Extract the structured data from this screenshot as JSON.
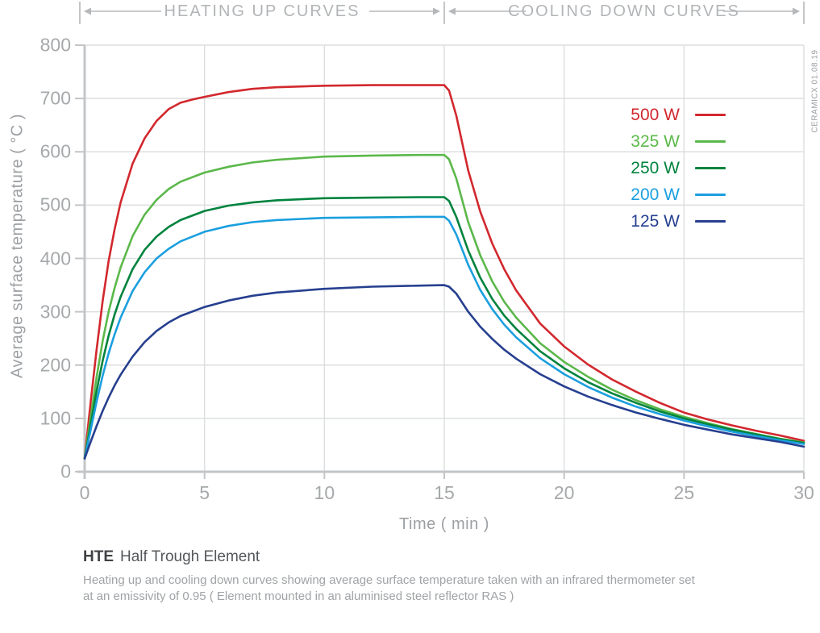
{
  "header": {
    "heating_label": "HEATING UP CURVES",
    "cooling_label": "COOLING DOWN CURVES"
  },
  "watermark": "CERAMICX 01.08.19",
  "caption": {
    "code": "HTE",
    "name": "Half Trough Element",
    "description_line1": "Heating up and cooling down curves showing average surface temperature taken with an infrared thermometer set",
    "description_line2": "at an emissivity of 0.95 ( Element mounted in an aluminised steel reflector RAS )"
  },
  "colors": {
    "grid": "#dcdedf",
    "axis": "#c3c5c7",
    "header_line": "#b6b8ba",
    "tick_label": "#a6a9ab",
    "axis_title": "#9da0a3"
  },
  "chart_data": {
    "type": "line",
    "title": "",
    "xlabel": "Time ( min )",
    "ylabel": "Average surface temperature ( °C )",
    "xlim": [
      0,
      30
    ],
    "ylim": [
      0,
      800
    ],
    "x_ticks": [
      0,
      5,
      10,
      15,
      20,
      25,
      30
    ],
    "y_ticks": [
      0,
      100,
      200,
      300,
      400,
      500,
      600,
      700,
      800
    ],
    "grid": true,
    "legend_position": "upper right inside",
    "section_divider_x": 15,
    "sections": [
      "HEATING UP CURVES",
      "COOLING DOWN CURVES"
    ],
    "series": [
      {
        "name": "500 W",
        "color": "#d2282e",
        "plateau_c": 725,
        "points": [
          [
            0,
            25
          ],
          [
            0.25,
            130
          ],
          [
            0.5,
            230
          ],
          [
            0.75,
            320
          ],
          [
            1,
            395
          ],
          [
            1.25,
            455
          ],
          [
            1.5,
            505
          ],
          [
            2,
            578
          ],
          [
            2.5,
            625
          ],
          [
            3,
            658
          ],
          [
            3.5,
            680
          ],
          [
            4,
            692
          ],
          [
            4.5,
            698
          ],
          [
            5,
            703
          ],
          [
            6,
            712
          ],
          [
            7,
            718
          ],
          [
            8,
            721
          ],
          [
            10,
            724
          ],
          [
            12,
            725
          ],
          [
            14,
            725
          ],
          [
            15,
            725
          ],
          [
            15.2,
            715
          ],
          [
            15.5,
            668
          ],
          [
            16,
            565
          ],
          [
            16.5,
            488
          ],
          [
            17,
            428
          ],
          [
            17.5,
            380
          ],
          [
            18,
            340
          ],
          [
            19,
            278
          ],
          [
            20,
            235
          ],
          [
            21,
            201
          ],
          [
            22,
            173
          ],
          [
            23,
            150
          ],
          [
            24,
            129
          ],
          [
            25,
            111
          ],
          [
            26,
            98
          ],
          [
            27,
            87
          ],
          [
            28,
            77
          ],
          [
            29,
            68
          ],
          [
            30,
            58
          ]
        ]
      },
      {
        "name": "325 W",
        "color": "#5bb84a",
        "plateau_c": 595,
        "points": [
          [
            0,
            25
          ],
          [
            0.25,
            102
          ],
          [
            0.5,
            178
          ],
          [
            0.75,
            245
          ],
          [
            1,
            300
          ],
          [
            1.25,
            345
          ],
          [
            1.5,
            383
          ],
          [
            2,
            442
          ],
          [
            2.5,
            482
          ],
          [
            3,
            510
          ],
          [
            3.5,
            530
          ],
          [
            4,
            544
          ],
          [
            5,
            561
          ],
          [
            6,
            572
          ],
          [
            7,
            580
          ],
          [
            8,
            585
          ],
          [
            10,
            591
          ],
          [
            12,
            593
          ],
          [
            14,
            594
          ],
          [
            15,
            594
          ],
          [
            15.2,
            586
          ],
          [
            15.5,
            550
          ],
          [
            16,
            468
          ],
          [
            16.5,
            406
          ],
          [
            17,
            357
          ],
          [
            17.5,
            319
          ],
          [
            18,
            289
          ],
          [
            19,
            241
          ],
          [
            20,
            206
          ],
          [
            21,
            178
          ],
          [
            22,
            154
          ],
          [
            23,
            134
          ],
          [
            24,
            117
          ],
          [
            25,
            103
          ],
          [
            26,
            91
          ],
          [
            27,
            80
          ],
          [
            28,
            71
          ],
          [
            29,
            62
          ],
          [
            30,
            55
          ]
        ]
      },
      {
        "name": "250 W",
        "color": "#00833e",
        "plateau_c": 515,
        "points": [
          [
            0,
            25
          ],
          [
            0.25,
            88
          ],
          [
            0.5,
            152
          ],
          [
            0.75,
            208
          ],
          [
            1,
            255
          ],
          [
            1.25,
            295
          ],
          [
            1.5,
            328
          ],
          [
            2,
            380
          ],
          [
            2.5,
            416
          ],
          [
            3,
            441
          ],
          [
            3.5,
            459
          ],
          [
            4,
            472
          ],
          [
            5,
            489
          ],
          [
            6,
            499
          ],
          [
            7,
            505
          ],
          [
            8,
            509
          ],
          [
            10,
            513
          ],
          [
            12,
            514
          ],
          [
            14,
            515
          ],
          [
            15,
            515
          ],
          [
            15.2,
            508
          ],
          [
            15.5,
            478
          ],
          [
            16,
            415
          ],
          [
            16.5,
            364
          ],
          [
            17,
            324
          ],
          [
            17.5,
            293
          ],
          [
            18,
            268
          ],
          [
            19,
            226
          ],
          [
            20,
            194
          ],
          [
            21,
            168
          ],
          [
            22,
            147
          ],
          [
            23,
            129
          ],
          [
            24,
            113
          ],
          [
            25,
            100
          ],
          [
            26,
            89
          ],
          [
            27,
            79
          ],
          [
            28,
            70
          ],
          [
            29,
            61
          ],
          [
            30,
            54
          ]
        ]
      },
      {
        "name": "200 W",
        "color": "#1b9fdf",
        "plateau_c": 478,
        "points": [
          [
            0,
            25
          ],
          [
            0.25,
            78
          ],
          [
            0.5,
            132
          ],
          [
            0.75,
            180
          ],
          [
            1,
            222
          ],
          [
            1.25,
            258
          ],
          [
            1.5,
            289
          ],
          [
            2,
            339
          ],
          [
            2.5,
            374
          ],
          [
            3,
            400
          ],
          [
            3.5,
            418
          ],
          [
            4,
            432
          ],
          [
            5,
            450
          ],
          [
            6,
            461
          ],
          [
            7,
            468
          ],
          [
            8,
            472
          ],
          [
            10,
            476
          ],
          [
            12,
            477
          ],
          [
            14,
            478
          ],
          [
            15,
            478
          ],
          [
            15.2,
            471
          ],
          [
            15.5,
            445
          ],
          [
            16,
            388
          ],
          [
            16.5,
            341
          ],
          [
            17,
            305
          ],
          [
            17.5,
            276
          ],
          [
            18,
            252
          ],
          [
            19,
            213
          ],
          [
            20,
            183
          ],
          [
            21,
            159
          ],
          [
            22,
            139
          ],
          [
            23,
            122
          ],
          [
            24,
            108
          ],
          [
            25,
            96
          ],
          [
            26,
            85
          ],
          [
            27,
            75
          ],
          [
            28,
            67
          ],
          [
            29,
            59
          ],
          [
            30,
            52
          ]
        ]
      },
      {
        "name": "125 W",
        "color": "#263f8f",
        "plateau_c": 350,
        "points": [
          [
            0,
            25
          ],
          [
            0.25,
            56
          ],
          [
            0.5,
            86
          ],
          [
            0.75,
            114
          ],
          [
            1,
            139
          ],
          [
            1.25,
            162
          ],
          [
            1.5,
            182
          ],
          [
            2,
            216
          ],
          [
            2.5,
            243
          ],
          [
            3,
            264
          ],
          [
            3.5,
            280
          ],
          [
            4,
            292
          ],
          [
            5,
            309
          ],
          [
            6,
            321
          ],
          [
            7,
            330
          ],
          [
            8,
            336
          ],
          [
            10,
            343
          ],
          [
            12,
            347
          ],
          [
            14,
            349
          ],
          [
            15,
            350
          ],
          [
            15.2,
            347
          ],
          [
            15.5,
            334
          ],
          [
            16,
            300
          ],
          [
            16.5,
            272
          ],
          [
            17,
            249
          ],
          [
            17.5,
            229
          ],
          [
            18,
            212
          ],
          [
            19,
            183
          ],
          [
            20,
            160
          ],
          [
            21,
            141
          ],
          [
            22,
            125
          ],
          [
            23,
            111
          ],
          [
            24,
            99
          ],
          [
            25,
            88
          ],
          [
            26,
            79
          ],
          [
            27,
            70
          ],
          [
            28,
            63
          ],
          [
            29,
            56
          ],
          [
            30,
            47
          ]
        ]
      }
    ]
  }
}
